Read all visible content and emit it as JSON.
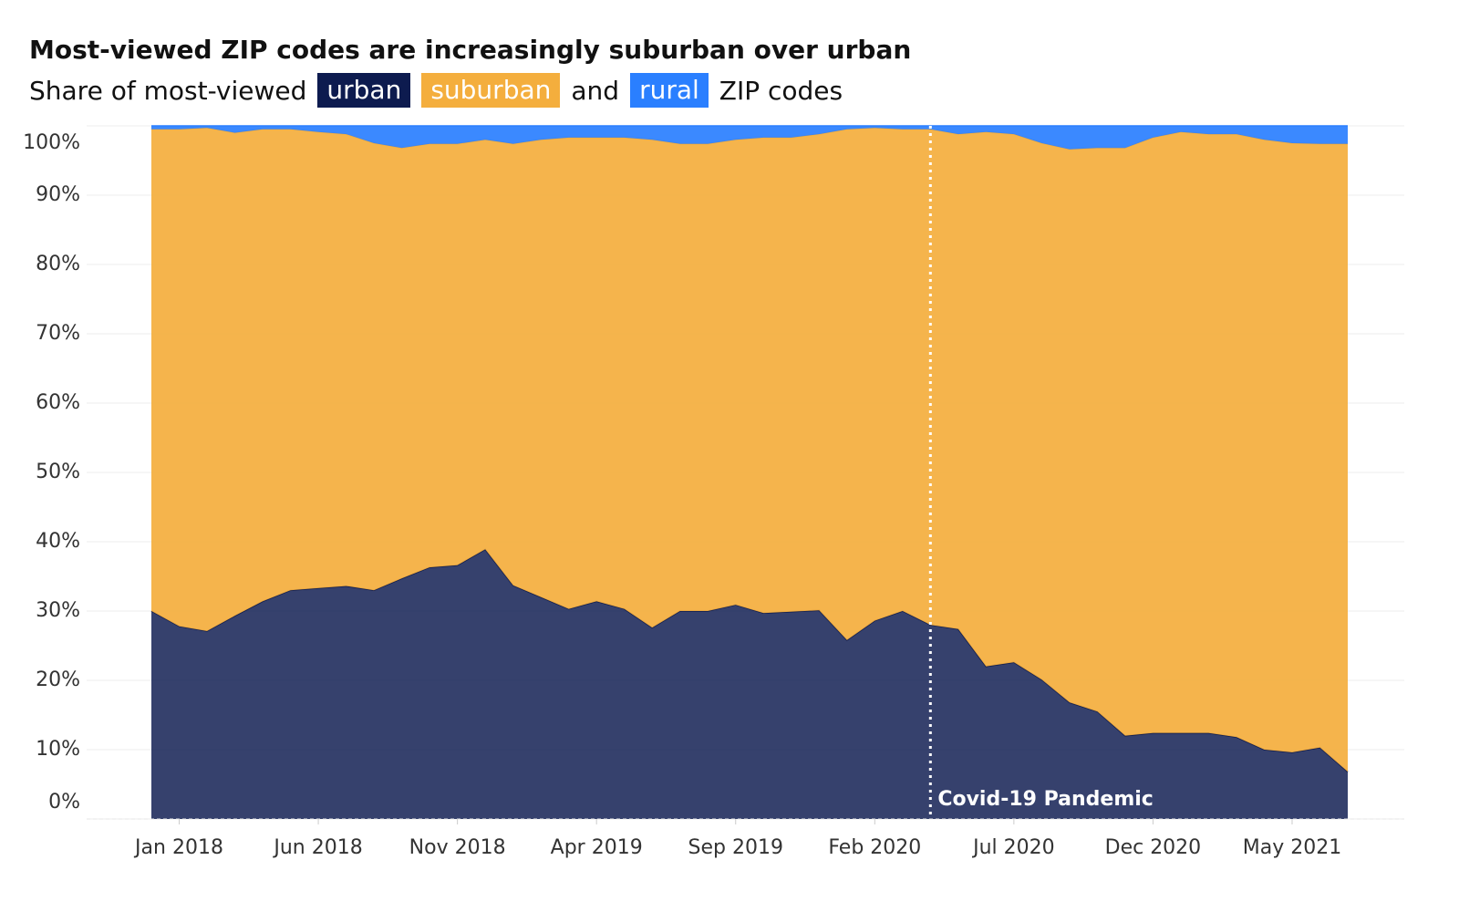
{
  "chart_data": {
    "type": "stacked_area",
    "title": "Most-viewed ZIP codes are increasingly suburban over urban",
    "subtitle": [
      "Share of most-viewed",
      "and",
      "ZIP codes"
    ],
    "x": [
      "2017-12",
      "2018-01",
      "2018-02",
      "2018-03",
      "2018-04",
      "2018-05",
      "2018-06",
      "2018-07",
      "2018-08",
      "2018-09",
      "2018-10",
      "2018-11",
      "2018-12",
      "2019-01",
      "2019-02",
      "2019-03",
      "2019-04",
      "2019-05",
      "2019-06",
      "2019-07",
      "2019-08",
      "2019-09",
      "2019-10",
      "2019-11",
      "2019-12",
      "2020-01",
      "2020-02",
      "2020-03",
      "2020-04",
      "2020-05",
      "2020-06",
      "2020-07",
      "2020-08",
      "2020-09",
      "2020-10",
      "2020-11",
      "2020-12",
      "2021-01",
      "2021-02",
      "2021-03",
      "2021-04",
      "2021-05",
      "2021-06",
      "2021-07"
    ],
    "series": [
      {
        "name": "urban",
        "color": "#0d1b4f",
        "values": [
          30.0,
          27.8,
          27.1,
          29.3,
          31.4,
          33.0,
          33.3,
          33.6,
          33.0,
          34.7,
          36.3,
          36.6,
          38.9,
          33.7,
          32.0,
          30.3,
          31.4,
          30.3,
          27.6,
          30.0,
          30.0,
          30.9,
          29.7,
          29.9,
          30.1,
          25.8,
          28.6,
          30.0,
          28.0,
          27.4,
          22.0,
          22.6,
          20.1,
          16.8,
          15.5,
          12.0,
          12.4,
          12.4,
          12.4,
          11.8,
          10.0,
          9.6,
          10.3,
          6.8
        ]
      },
      {
        "name": "suburban",
        "color": "#f4ae3d",
        "values": [
          69.5,
          71.7,
          72.6,
          69.7,
          68.1,
          66.5,
          65.8,
          65.2,
          64.5,
          62.1,
          61.1,
          60.8,
          59.1,
          63.7,
          66.0,
          68.0,
          66.9,
          68.0,
          70.4,
          67.4,
          67.4,
          67.1,
          68.6,
          68.4,
          68.7,
          73.7,
          71.1,
          69.5,
          71.5,
          71.4,
          77.1,
          76.2,
          77.4,
          79.8,
          81.3,
          84.8,
          85.9,
          86.7,
          86.4,
          87.0,
          88.0,
          87.9,
          87.1,
          90.6
        ]
      },
      {
        "name": "rural",
        "color": "#2a7fff",
        "values": [
          0.5,
          0.5,
          0.3,
          1.0,
          0.5,
          0.5,
          0.9,
          1.2,
          2.5,
          3.2,
          2.6,
          2.6,
          2.0,
          2.6,
          2.0,
          1.7,
          1.7,
          1.7,
          2.0,
          2.6,
          2.6,
          2.0,
          1.7,
          1.7,
          1.2,
          0.5,
          0.3,
          0.5,
          0.5,
          1.2,
          0.9,
          1.2,
          2.5,
          3.4,
          3.2,
          3.2,
          1.7,
          0.9,
          1.2,
          1.2,
          2.0,
          2.5,
          2.6,
          2.6
        ]
      }
    ],
    "ylim": [
      0,
      100
    ],
    "yticks": [
      {
        "value": 0,
        "label": "0%"
      },
      {
        "value": 10,
        "label": "10%"
      },
      {
        "value": 20,
        "label": "20%"
      },
      {
        "value": 30,
        "label": "30%"
      },
      {
        "value": 40,
        "label": "40%"
      },
      {
        "value": 50,
        "label": "50%"
      },
      {
        "value": 60,
        "label": "60%"
      },
      {
        "value": 70,
        "label": "70%"
      },
      {
        "value": 80,
        "label": "80%"
      },
      {
        "value": 90,
        "label": "90%"
      },
      {
        "value": 100,
        "label": "100%"
      }
    ],
    "xticks": [
      {
        "value": "2018-01",
        "label": "Jan 2018"
      },
      {
        "value": "2018-06",
        "label": "Jun 2018"
      },
      {
        "value": "2018-11",
        "label": "Nov 2018"
      },
      {
        "value": "2019-04",
        "label": "Apr 2019"
      },
      {
        "value": "2019-09",
        "label": "Sep 2019"
      },
      {
        "value": "2020-02",
        "label": "Feb 2020"
      },
      {
        "value": "2020-07",
        "label": "Jul 2020"
      },
      {
        "value": "2020-12",
        "label": "Dec 2020"
      },
      {
        "value": "2021-05",
        "label": "May 2021"
      }
    ],
    "grid": true,
    "annotation": {
      "text": "Covid-19 Pandemic",
      "x": "2020-04"
    }
  }
}
